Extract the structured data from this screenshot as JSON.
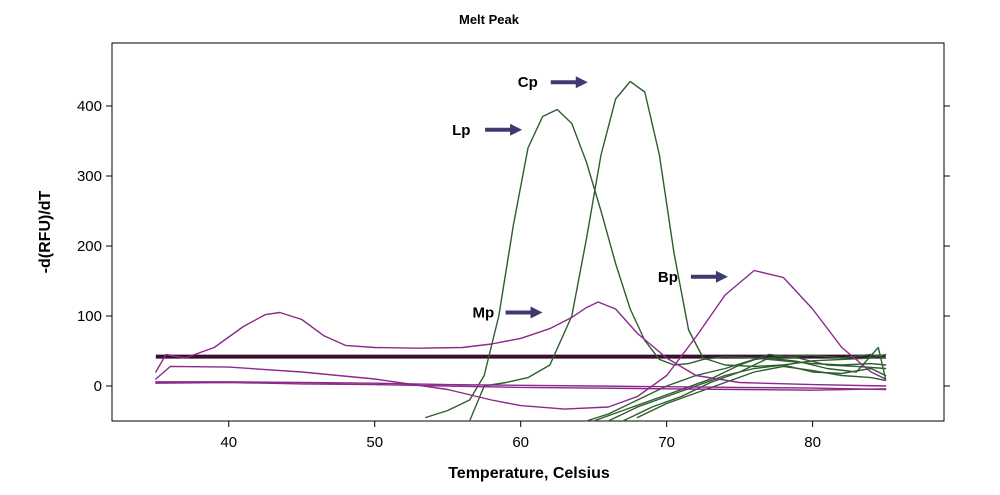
{
  "chart_data": {
    "type": "line",
    "title": "Melt Peak",
    "xlabel": "Temperature, Celsius",
    "ylabel": "-d(RFU)/dT",
    "xlim": [
      32,
      89
    ],
    "ylim": [
      -50,
      490
    ],
    "xticks": [
      40,
      50,
      60,
      70,
      80
    ],
    "yticks": [
      0,
      100,
      200,
      300,
      400
    ],
    "grid": false,
    "threshold": {
      "y": 42,
      "color": "#3a1030"
    },
    "colors": {
      "green": "#2e5e2e",
      "purple": "#8a2a8a",
      "arrow": "#3d3a6e"
    },
    "series": [
      {
        "color": "#2e5e2e",
        "x": [
          53.5,
          55,
          56.5,
          57.5,
          58.5,
          59.5,
          60.5,
          61.5,
          62.5,
          63.5,
          64.5,
          65.5,
          66.5,
          67.5,
          68.5,
          69.5,
          70.5,
          71.5,
          72.5,
          74,
          76,
          78,
          80,
          82,
          84,
          85
        ],
        "y": [
          -45,
          -35,
          -20,
          15,
          100,
          230,
          340,
          385,
          395,
          375,
          320,
          250,
          175,
          110,
          65,
          38,
          30,
          32,
          38,
          42,
          40,
          36,
          32,
          30,
          32,
          30
        ]
      },
      {
        "color": "#2e5e2e",
        "x": [
          56.5,
          57.5,
          59,
          60.5,
          62,
          63.5,
          64.5,
          65.5,
          66.5,
          67.5,
          68.5,
          69.5,
          70.5,
          71.5,
          72.5,
          74,
          76,
          78,
          80,
          82,
          84,
          85
        ],
        "y": [
          -50,
          0,
          5,
          12,
          30,
          100,
          210,
          330,
          410,
          435,
          420,
          330,
          190,
          80,
          40,
          30,
          28,
          30,
          36,
          38,
          40,
          45
        ]
      },
      {
        "color": "#2e5e2e",
        "x": [
          64.5,
          66,
          68,
          70,
          72,
          74,
          76,
          78,
          80,
          82,
          84,
          85
        ],
        "y": [
          -50,
          -40,
          -20,
          0,
          15,
          25,
          38,
          42,
          44,
          40,
          45,
          40
        ]
      },
      {
        "color": "#2e5e2e",
        "x": [
          65,
          67,
          69,
          71,
          73,
          75,
          77,
          79,
          81,
          83,
          85
        ],
        "y": [
          -50,
          -35,
          -20,
          -5,
          10,
          30,
          45,
          40,
          30,
          28,
          25
        ]
      },
      {
        "color": "#2e5e2e",
        "x": [
          66,
          68,
          70,
          72,
          74,
          76,
          78,
          80,
          82,
          84,
          85
        ],
        "y": [
          -50,
          -30,
          -15,
          0,
          15,
          25,
          30,
          20,
          18,
          25,
          15
        ]
      },
      {
        "color": "#2e5e2e",
        "x": [
          67,
          69,
          71,
          73,
          75,
          77,
          79,
          81,
          83,
          84.5,
          85
        ],
        "y": [
          -50,
          -30,
          -15,
          5,
          20,
          40,
          35,
          25,
          20,
          55,
          10
        ]
      },
      {
        "color": "#2e5e2e",
        "x": [
          68,
          70,
          72,
          74,
          76,
          78,
          80,
          82,
          84,
          85
        ],
        "y": [
          -45,
          -25,
          -10,
          5,
          20,
          28,
          22,
          15,
          12,
          8
        ]
      },
      {
        "color": "#8a2a8a",
        "x": [
          35,
          35.7,
          37,
          39,
          41,
          42.5,
          43.5,
          45,
          46.5,
          48,
          50,
          53,
          56,
          58,
          60,
          62,
          63.5,
          64.5,
          65.3,
          66.5,
          68,
          70,
          72,
          75,
          80,
          85
        ],
        "y": [
          20,
          45,
          40,
          55,
          85,
          102,
          105,
          95,
          72,
          58,
          55,
          54,
          55,
          60,
          68,
          82,
          98,
          112,
          120,
          110,
          75,
          40,
          15,
          5,
          2,
          0
        ]
      },
      {
        "color": "#8a2a8a",
        "x": [
          35,
          36,
          40,
          45,
          50,
          55,
          58,
          60,
          63,
          66,
          68,
          70,
          72,
          74,
          76,
          78,
          80,
          82,
          84,
          85
        ],
        "y": [
          10,
          28,
          27,
          20,
          10,
          -5,
          -20,
          -28,
          -33,
          -30,
          -15,
          15,
          70,
          130,
          165,
          155,
          110,
          55,
          20,
          10
        ]
      },
      {
        "color": "#8a2a8a",
        "x": [
          35,
          40,
          45,
          50,
          55,
          60,
          65,
          70,
          75,
          80,
          85
        ],
        "y": [
          4,
          5,
          3,
          2,
          0,
          -2,
          -3,
          -4,
          -5,
          -6,
          -4
        ]
      },
      {
        "color": "#8a2a8a",
        "x": [
          35,
          40,
          45,
          50,
          55,
          60,
          65,
          70,
          75,
          80,
          85
        ],
        "y": [
          6,
          6,
          5,
          4,
          2,
          1,
          0,
          -1,
          -2,
          -3,
          -5
        ]
      }
    ],
    "annotations": [
      {
        "text": "Cp",
        "x": 59.8,
        "y": 434
      },
      {
        "text": "Lp",
        "x": 55.3,
        "y": 366
      },
      {
        "text": "Bp",
        "x": 69.4,
        "y": 156
      },
      {
        "text": "Mp",
        "x": 56.7,
        "y": 105
      }
    ]
  }
}
